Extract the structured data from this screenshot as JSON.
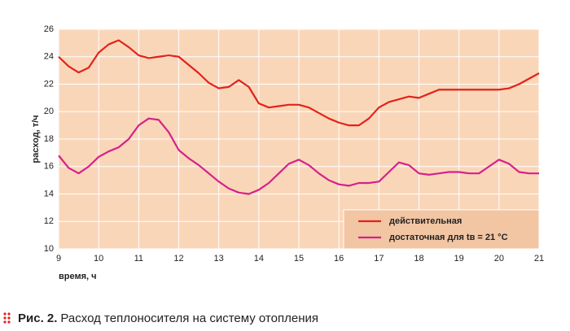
{
  "chart_data": {
    "type": "line",
    "y_label": "расход, т/ч",
    "x_label": "время, ч",
    "caption_label": "Рис. 2.",
    "caption": "Расход теплоносителя на систему отопления",
    "x": [
      9,
      9.25,
      9.5,
      9.75,
      10,
      10.25,
      10.5,
      10.75,
      11,
      11.25,
      11.5,
      11.75,
      12,
      12.25,
      12.5,
      12.75,
      13,
      13.25,
      13.5,
      13.75,
      14,
      14.25,
      14.5,
      14.75,
      15,
      15.25,
      15.5,
      15.75,
      16,
      16.25,
      16.5,
      16.75,
      17,
      17.25,
      17.5,
      17.75,
      18,
      18.25,
      18.5,
      18.75,
      19,
      19.25,
      19.5,
      19.75,
      20,
      20.25,
      20.5,
      20.75,
      21
    ],
    "series": [
      {
        "name": "действительная",
        "color": "#e2231a",
        "values": [
          24.0,
          23.3,
          22.85,
          23.2,
          24.3,
          24.9,
          25.2,
          24.7,
          24.1,
          23.9,
          24.0,
          24.1,
          24.0,
          23.4,
          22.8,
          22.1,
          21.7,
          21.8,
          22.3,
          21.8,
          20.6,
          20.3,
          20.4,
          20.5,
          20.5,
          20.3,
          19.9,
          19.5,
          19.2,
          19.0,
          19.0,
          19.5,
          20.3,
          20.7,
          20.9,
          21.1,
          21.0,
          21.3,
          21.6,
          21.6,
          21.6,
          21.6,
          21.6,
          21.6,
          21.6,
          21.7,
          22.0,
          22.4,
          22.8
        ]
      },
      {
        "name": "достаточная для tв = 21 °C",
        "color": "#d6218a",
        "values": [
          16.8,
          15.9,
          15.5,
          16.0,
          16.7,
          17.1,
          17.4,
          18.0,
          19.0,
          19.5,
          19.4,
          18.5,
          17.2,
          16.6,
          16.1,
          15.5,
          14.9,
          14.4,
          14.1,
          14.0,
          14.3,
          14.8,
          15.5,
          16.2,
          16.5,
          16.1,
          15.5,
          15.0,
          14.7,
          14.6,
          14.8,
          14.8,
          14.9,
          15.6,
          16.3,
          16.1,
          15.5,
          15.4,
          15.5,
          15.6,
          15.6,
          15.5,
          15.5,
          16.0,
          16.5,
          16.2,
          15.6,
          15.5,
          15.5
        ]
      }
    ],
    "xlim": [
      9,
      21
    ],
    "ylim": [
      10,
      26
    ],
    "xticks": [
      9,
      10,
      11,
      12,
      13,
      14,
      15,
      16,
      17,
      18,
      19,
      20,
      21
    ],
    "yticks": [
      10,
      12,
      14,
      16,
      18,
      20,
      22,
      24,
      26
    ],
    "grid": true,
    "background": "#fad6b9",
    "legend": "lower right"
  }
}
